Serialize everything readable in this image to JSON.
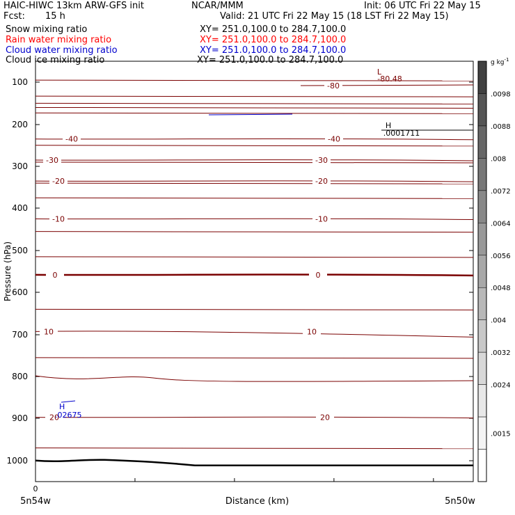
{
  "header": {
    "title_left": "HAIC-HIWC 13km ARW-GFS init",
    "title_center": "NCAR/MMM",
    "init": "Init: 06 UTC Fri 22 May 15",
    "fcst_label": "Fcst:",
    "fcst_value": "15 h",
    "valid": "Valid: 21 UTC Fri 22 May 15 (18 LST Fri 22 May 15)"
  },
  "fields": [
    {
      "name": "Snow mixing ratio",
      "xy": "XY= 251.0,100.0 to 284.7,100.0",
      "color": "#000000"
    },
    {
      "name": "Rain water mixing ratio",
      "xy": "XY= 251.0,100.0 to 284.7,100.0",
      "color": "#ff0000"
    },
    {
      "name": "Cloud water mixing ratio",
      "xy": "XY= 251.0,100.0 to 284.7,100.0",
      "color": "#0000cc"
    },
    {
      "name": "Cloud ice mixing ratio",
      "xy": "XY= 251.0,100.0 to 284.7,100.0",
      "color": "#000000"
    }
  ],
  "chart_data": {
    "type": "contour-cross-section",
    "xlabel": "Distance (km)",
    "ylabel": "Pressure (hPa)",
    "x_tick_labels": {
      "0": "0"
    },
    "x_end_labels": [
      "5n54w",
      "5n50w"
    ],
    "y_ticks": [
      100,
      200,
      300,
      400,
      500,
      600,
      700,
      800,
      900,
      1000
    ],
    "ylim": [
      1050,
      50
    ],
    "temperature_contours": [
      {
        "label": "-80",
        "level": -80
      },
      {
        "label": "-40",
        "level": -40
      },
      {
        "label": "-30",
        "level": -30
      },
      {
        "label": "-20",
        "level": -20
      },
      {
        "label": "-10",
        "level": -10
      },
      {
        "label": "0",
        "level": 0
      },
      {
        "label": "10",
        "level": 10
      },
      {
        "label": "20",
        "level": 20
      }
    ],
    "extrema": [
      {
        "type": "L",
        "value": "-80.48",
        "color": "#7a0000"
      },
      {
        "type": "H",
        "value": ".0001711",
        "color": "#000000"
      },
      {
        "type": "H",
        "value": ".02675",
        "color": "#0000cc"
      }
    ],
    "colorbar": {
      "units": "g kg",
      "units_exp": "-1",
      "labels": [
        ".0098",
        ".0088",
        ".008",
        ".0072",
        ".0064",
        ".0056",
        ".0048",
        ".004",
        ".0032",
        ".0024",
        ".0015"
      ],
      "colors": [
        "#404040",
        "#555555",
        "#666666",
        "#777777",
        "#888888",
        "#999999",
        "#a8a8a8",
        "#b8b8b8",
        "#c8c8c8",
        "#d8d8d8",
        "#e8e8e8",
        "#f4f4f4",
        "#ffffff"
      ]
    },
    "colors": {
      "contour": "#7a0000",
      "terrain": "#000000",
      "cloud_water": "#0000cc"
    }
  }
}
